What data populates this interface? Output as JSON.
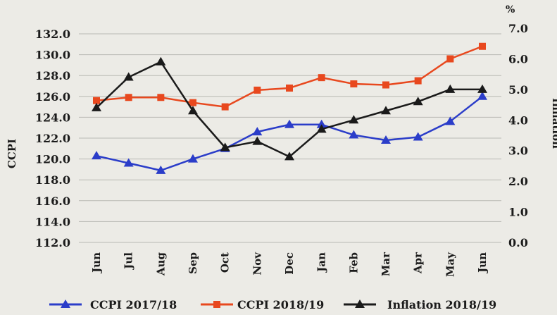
{
  "chart_data": {
    "type": "line",
    "title": "",
    "categories": [
      "Jun",
      "Jul",
      "Aug",
      "Sep",
      "Oct",
      "Nov",
      "Dec",
      "Jan",
      "Feb",
      "Mar",
      "Apr",
      "May",
      "Jun"
    ],
    "left_axis": {
      "label": "CCPI",
      "min": 112.0,
      "max": 132.0,
      "ticks": [
        "132.0",
        "130.0",
        "128.0",
        "126.0",
        "124.0",
        "122.0",
        "120.0",
        "118.0",
        "116.0",
        "114.0",
        "112.0"
      ]
    },
    "right_axis": {
      "label": "Inflation",
      "unit": "%",
      "min": 0.0,
      "max": 7.0,
      "ticks": [
        "7.0",
        "6.0",
        "5.0",
        "4.0",
        "3.0",
        "2.0",
        "1.0",
        "0.0"
      ]
    },
    "series": [
      {
        "name": "CCPI 2017/18",
        "axis": "left",
        "color": "#2b3dc9",
        "marker": "triangle",
        "values": [
          120.3,
          119.6,
          118.9,
          120.0,
          121.0,
          122.6,
          123.3,
          123.3,
          122.3,
          121.8,
          122.1,
          123.6,
          126.0
        ]
      },
      {
        "name": "CCPI 2018/19",
        "axis": "left",
        "color": "#e8481e",
        "marker": "square",
        "values": [
          125.6,
          125.9,
          125.9,
          125.4,
          125.0,
          126.6,
          126.8,
          127.8,
          127.2,
          127.1,
          127.5,
          129.6,
          130.8
        ]
      },
      {
        "name": "Inflation 2018/19",
        "axis": "right",
        "color": "#1a1a1a",
        "marker": "triangle",
        "values": [
          4.4,
          5.4,
          5.9,
          4.3,
          3.1,
          3.3,
          2.8,
          3.7,
          4.0,
          4.3,
          4.6,
          5.0,
          5.0
        ]
      }
    ],
    "legend_position": "bottom",
    "grid": "horizontal"
  }
}
